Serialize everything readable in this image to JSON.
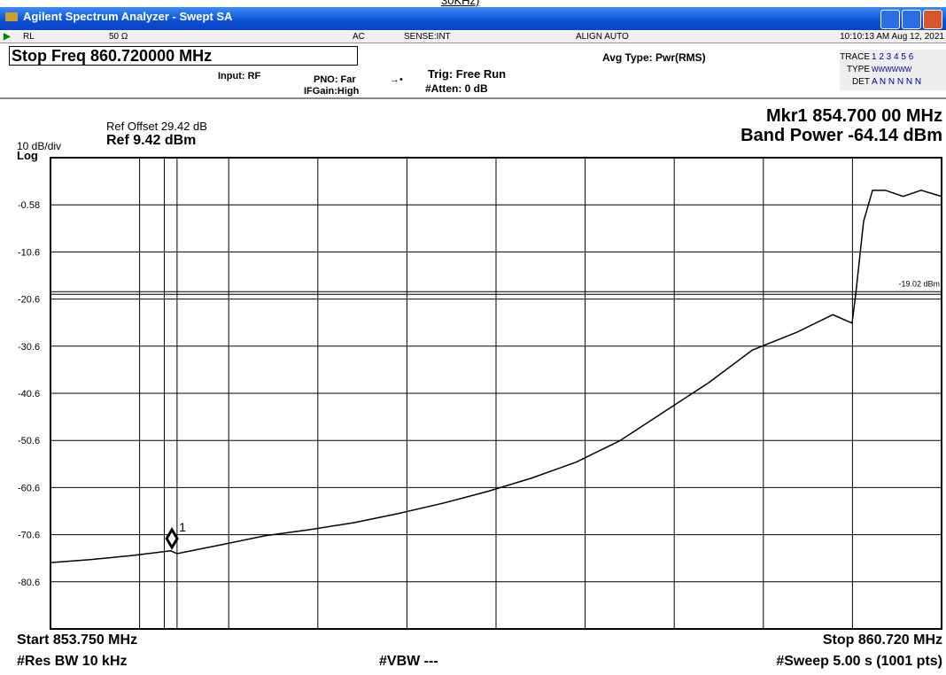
{
  "clipped_text": "30KHz)",
  "window": {
    "title": "Agilent Spectrum Analyzer - Swept SA"
  },
  "status_bar": {
    "rl": "RL",
    "impedance": "50 Ω",
    "coupling": "AC",
    "sense": "SENSE:INT",
    "align": "ALIGN AUTO",
    "datetime": "10:10:13 AM Aug 12, 2021"
  },
  "settings": {
    "stop_freq": "Stop Freq  860.720000 MHz",
    "input": "Input: RF",
    "pno": "PNO: Far",
    "ifgain": "IFGain:High",
    "trig": "Trig: Free Run",
    "atten": "#Atten: 0 dB",
    "avg_type": "Avg Type: Pwr(RMS)",
    "trace_label": "TRACE",
    "trace_values": "1 2 3 4 5 6",
    "type_label": "TYPE",
    "type_values": "WWWWWW",
    "det_label": "DET",
    "det_values": "A N N N N N"
  },
  "chart_data": {
    "type": "line",
    "ref_offset": "Ref Offset 29.42 dB",
    "ref_level": "Ref 9.42 dBm",
    "scale": "10 dB/div",
    "scale_type": "Log",
    "marker_readout": "Mkr1 854.700 00 MHz",
    "band_power": "Band Power -64.14 dBm",
    "start": "Start 853.750 MHz",
    "stop": "Stop 860.720 MHz",
    "rbw": "#Res BW 10 kHz",
    "vbw": "#VBW ---",
    "sweep": "#Sweep  5.00 s (1001 pts)",
    "xlim": [
      853.75,
      860.72
    ],
    "ylim": [
      -90.58,
      9.42
    ],
    "x_divisions": 10,
    "yticks": [
      -0.58,
      {
        "value": -10.58,
        "label": "-10.6"
      },
      {
        "value": -20.58,
        "label": "-20.6"
      },
      {
        "value": -30.58,
        "label": "-30.6"
      },
      {
        "value": -40.58,
        "label": "-40.6"
      },
      {
        "value": -50.58,
        "label": "-50.6"
      },
      {
        "value": -60.58,
        "label": "-60.6"
      },
      {
        "value": -70.58,
        "label": "-70.6"
      },
      {
        "value": -80.58,
        "label": "-80.6"
      }
    ],
    "grid": true,
    "color": "#000000",
    "x": [
      853.75,
      854.05,
      854.39,
      854.69,
      854.74,
      855.09,
      855.43,
      855.78,
      856.13,
      856.47,
      856.82,
      857.17,
      857.51,
      857.86,
      858.2,
      858.55,
      858.9,
      859.24,
      859.59,
      859.87,
      860.02,
      860.05,
      860.11,
      860.18,
      860.28,
      860.42,
      860.56,
      860.72
    ],
    "values": [
      -76.5,
      -75.9,
      -75.0,
      -74.0,
      -74.6,
      -72.7,
      -70.8,
      -69.5,
      -68.0,
      -66.1,
      -63.9,
      -61.4,
      -58.6,
      -55.2,
      -50.7,
      -44.5,
      -38.3,
      -31.4,
      -27.6,
      -23.9,
      -25.7,
      -19.2,
      -4.1,
      2.5,
      2.5,
      1.2,
      2.5,
      1.2
    ],
    "display_line": {
      "value": -19.02,
      "label": "-19.02 dBm"
    },
    "band_edges": [
      854.64,
      854.74
    ],
    "marker": {
      "x": 854.7,
      "y": -71.4,
      "label": "1"
    }
  }
}
